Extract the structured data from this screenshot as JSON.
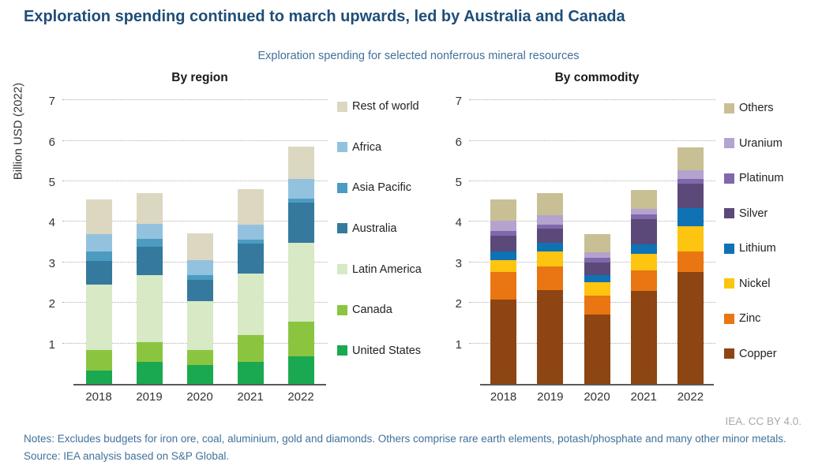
{
  "title": "Exploration spending continued to march upwards, led by Australia and Canada",
  "subtitle": "Exploration spending for selected nonferrous mineral resources",
  "attribution": "IEA. CC BY 4.0.",
  "notes": "Notes: Excludes budgets for iron ore, coal, aluminium, gold and diamonds. Others comprise rare earth elements, potash/phosphate and many other minor metals.",
  "source": "Source: IEA analysis based on S&P Global.",
  "colors": {
    "title_accent": "#1f4e79",
    "subtitle_accent": "#41719c",
    "attribution_gray": "#a9a9a9",
    "axis_line": "#595959",
    "gridline": "#adadad"
  },
  "chart_data": [
    {
      "type": "bar",
      "stacked": true,
      "panel_title": "By region",
      "ylabel": "Billion USD (2022)",
      "ylim": [
        0,
        7
      ],
      "yticks": [
        1,
        2,
        3,
        4,
        5,
        6,
        7
      ],
      "grid": "horizontal-dotted",
      "legend_position": "right",
      "categories": [
        "2018",
        "2019",
        "2020",
        "2021",
        "2022"
      ],
      "series": [
        {
          "name": "United States",
          "color": "#1aa950",
          "values": [
            0.33,
            0.55,
            0.46,
            0.55,
            0.68
          ]
        },
        {
          "name": "Canada",
          "color": "#8bc540",
          "values": [
            0.5,
            0.48,
            0.37,
            0.65,
            0.85
          ]
        },
        {
          "name": "Latin America",
          "color": "#d7e9c5",
          "values": [
            1.63,
            1.65,
            1.22,
            1.53,
            1.95
          ]
        },
        {
          "name": "Australia",
          "color": "#35799e",
          "values": [
            0.57,
            0.7,
            0.51,
            0.73,
            1.0
          ]
        },
        {
          "name": "Asia Pacific",
          "color": "#4c9cc2",
          "values": [
            0.24,
            0.2,
            0.12,
            0.1,
            0.1
          ]
        },
        {
          "name": "Africa",
          "color": "#93c2de",
          "values": [
            0.42,
            0.37,
            0.37,
            0.37,
            0.47
          ]
        },
        {
          "name": "Rest of world",
          "color": "#dcd7c1",
          "values": [
            0.87,
            0.75,
            0.67,
            0.87,
            0.8
          ]
        }
      ]
    },
    {
      "type": "bar",
      "stacked": true,
      "panel_title": "By commodity",
      "ylabel": "",
      "ylim": [
        0,
        7
      ],
      "yticks": [
        1,
        2,
        3,
        4,
        5,
        6,
        7
      ],
      "grid": "horizontal-dotted",
      "legend_position": "right",
      "categories": [
        "2018",
        "2019",
        "2020",
        "2021",
        "2022"
      ],
      "series": [
        {
          "name": "Copper",
          "color": "#8c4513",
          "values": [
            2.08,
            2.32,
            1.72,
            2.3,
            2.77
          ]
        },
        {
          "name": "Zinc",
          "color": "#e97612",
          "values": [
            0.68,
            0.58,
            0.46,
            0.51,
            0.5
          ]
        },
        {
          "name": "Nickel",
          "color": "#fdc50f",
          "values": [
            0.29,
            0.36,
            0.33,
            0.4,
            0.63
          ]
        },
        {
          "name": "Lithium",
          "color": "#0f72b5",
          "values": [
            0.22,
            0.23,
            0.18,
            0.23,
            0.43
          ]
        },
        {
          "name": "Silver",
          "color": "#5b4a79",
          "values": [
            0.39,
            0.35,
            0.3,
            0.63,
            0.62
          ]
        },
        {
          "name": "Platinum",
          "color": "#8068ad",
          "values": [
            0.11,
            0.1,
            0.12,
            0.11,
            0.1
          ]
        },
        {
          "name": "Uranium",
          "color": "#b4a3cf",
          "values": [
            0.26,
            0.23,
            0.14,
            0.15,
            0.22
          ]
        },
        {
          "name": "Others",
          "color": "#c8bf94",
          "values": [
            0.53,
            0.54,
            0.45,
            0.46,
            0.57
          ]
        }
      ]
    }
  ]
}
